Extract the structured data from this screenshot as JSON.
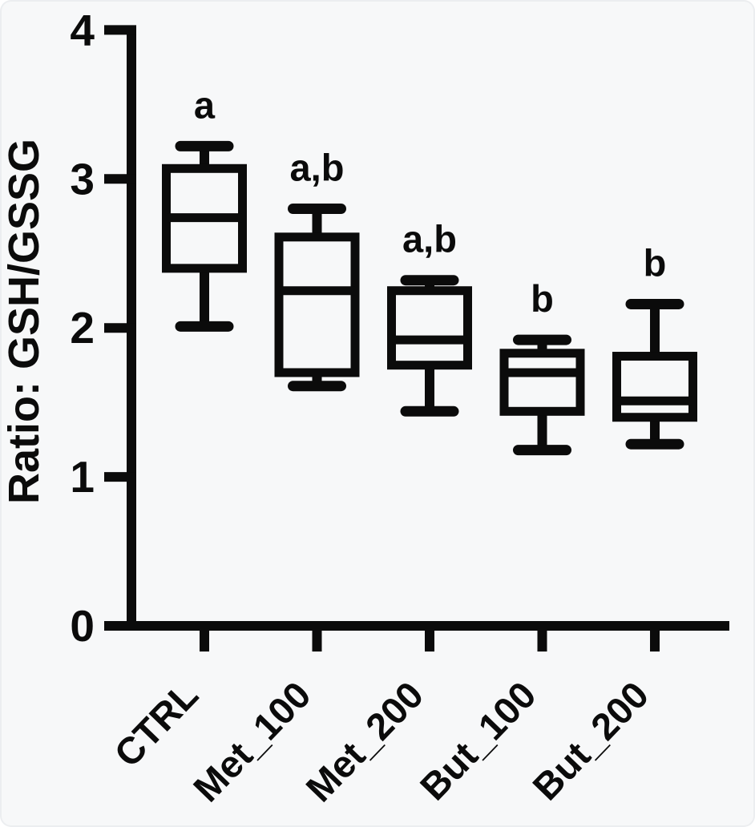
{
  "chart_data": {
    "type": "box",
    "title": "",
    "xlabel": "",
    "ylabel": "Ratio: GSH/GSSG",
    "ylim": [
      0,
      4
    ],
    "yticks": [
      0,
      1,
      2,
      3,
      4
    ],
    "grid": false,
    "legend": null,
    "categories": [
      "CTRL",
      "Met_100",
      "Met_200",
      "But_100",
      "But_200"
    ],
    "series": [
      {
        "category": "CTRL",
        "whisker_low": 2.01,
        "q1": 2.4,
        "median": 2.74,
        "q3": 3.07,
        "whisker_high": 3.22,
        "significance": "a"
      },
      {
        "category": "Met_100",
        "whisker_low": 1.61,
        "q1": 1.7,
        "median": 2.25,
        "q3": 2.61,
        "whisker_high": 2.8,
        "significance": "a,b"
      },
      {
        "category": "Met_200",
        "whisker_low": 1.44,
        "q1": 1.75,
        "median": 1.92,
        "q3": 2.25,
        "whisker_high": 2.32,
        "significance": "a,b"
      },
      {
        "category": "But_100",
        "whisker_low": 1.18,
        "q1": 1.44,
        "median": 1.7,
        "q3": 1.83,
        "whisker_high": 1.92,
        "significance": "b"
      },
      {
        "category": "But_200",
        "whisker_low": 1.22,
        "q1": 1.4,
        "median": 1.51,
        "q3": 1.81,
        "whisker_high": 2.16,
        "significance": "b"
      }
    ]
  },
  "colors": {
    "ink": "#0b0b0b",
    "background": "#f7f8f9",
    "frame_border": "#eceef0"
  }
}
